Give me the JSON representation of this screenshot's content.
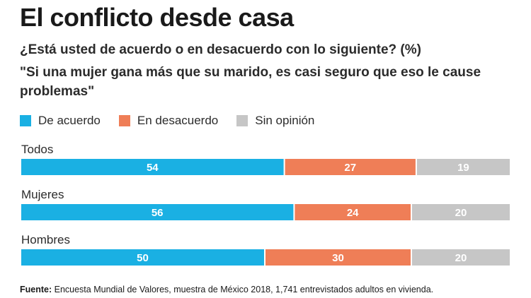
{
  "title": "El conflicto desde casa",
  "question": "¿Está usted de acuerdo o en desacuerdo con lo siguiente? (%)",
  "quote": "\"Si una mujer gana más que su marido, es casi seguro que eso le cause problemas\"",
  "source": {
    "label": "Fuente:",
    "text": " Encuesta Mundial de Valores, muestra de México 2018, 1,741 entrevistados adultos en vivienda."
  },
  "colors": {
    "de_acuerdo": "#1ab0e3",
    "en_desacuerdo": "#ef7e57",
    "sin_opinion": "#c6c6c6"
  },
  "chart_data": {
    "type": "bar",
    "stacked": true,
    "orientation": "horizontal",
    "categories": [
      "Todos",
      "Mujeres",
      "Hombres"
    ],
    "series": [
      {
        "name": "De acuerdo",
        "color": "#1ab0e3",
        "values": [
          54,
          56,
          50
        ]
      },
      {
        "name": "En desacuerdo",
        "color": "#ef7e57",
        "values": [
          27,
          24,
          30
        ]
      },
      {
        "name": "Sin opinión",
        "color": "#c6c6c6",
        "values": [
          19,
          20,
          20
        ]
      }
    ],
    "legend": "top-left",
    "grid": false
  }
}
